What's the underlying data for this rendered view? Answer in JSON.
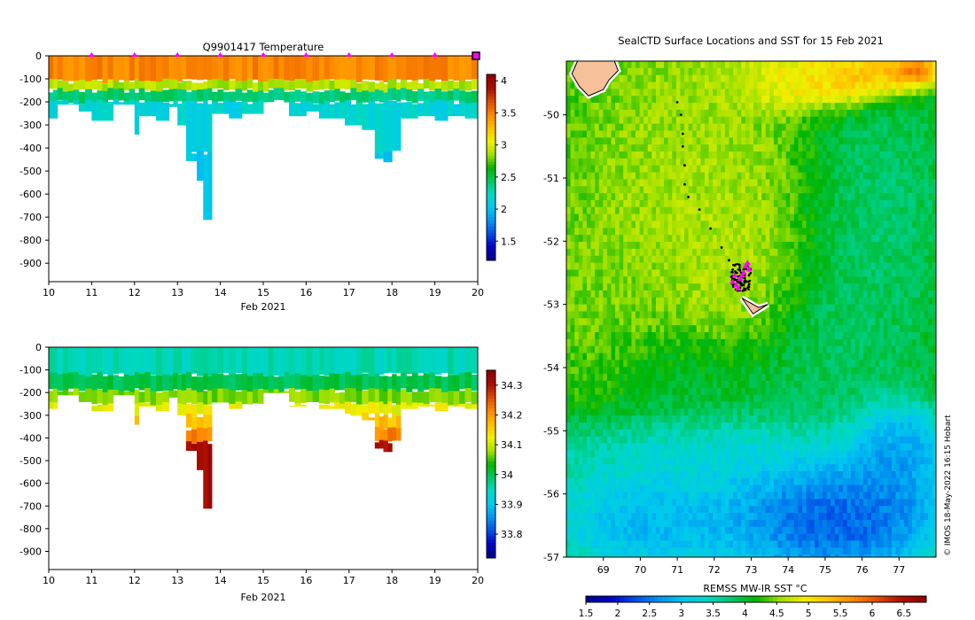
{
  "colors": {
    "sea_ramp": [
      "#00008b",
      "#0000cd",
      "#0050e6",
      "#0096f0",
      "#00c8f0",
      "#00d8c0",
      "#00c864",
      "#00b400",
      "#a0e000",
      "#f0f000",
      "#ffc000",
      "#ff8c00",
      "#e05000",
      "#b01000",
      "#900000"
    ],
    "land": "#f5c09a",
    "track": "#000000",
    "marker": "#ff00ff"
  },
  "chart_data": [
    {
      "type": "heatmap",
      "title": "Q9901417  Temperature",
      "xlabel": "Feb 2021",
      "xlim": [
        10,
        20
      ],
      "ylim": [
        -980,
        0
      ],
      "xticks": [
        10,
        11,
        12,
        13,
        14,
        15,
        16,
        17,
        18,
        19,
        20
      ],
      "yticks": [
        0,
        -100,
        -200,
        -300,
        -400,
        -500,
        -600,
        -700,
        -800,
        -900
      ],
      "colorbar": {
        "min": 1.2,
        "max": 4.1,
        "ticks": [
          1.5,
          2,
          2.5,
          3,
          3.5,
          4
        ]
      },
      "profile_markers": [
        11,
        12,
        13,
        14,
        15,
        16,
        17,
        18,
        19,
        20
      ],
      "profiles": [
        {
          "start": 10.0,
          "end": 10.2,
          "depth": 270
        },
        {
          "start": 10.2,
          "end": 10.7,
          "depth": 210
        },
        {
          "start": 10.7,
          "end": 11.0,
          "depth": 240
        },
        {
          "start": 11.0,
          "end": 11.5,
          "depth": 280
        },
        {
          "start": 11.5,
          "end": 12.0,
          "depth": 210
        },
        {
          "start": 12.0,
          "end": 12.1,
          "depth": 340
        },
        {
          "start": 12.1,
          "end": 12.5,
          "depth": 260
        },
        {
          "start": 12.5,
          "end": 12.8,
          "depth": 280
        },
        {
          "start": 12.8,
          "end": 13.0,
          "depth": 220
        },
        {
          "start": 13.0,
          "end": 13.2,
          "depth": 300
        },
        {
          "start": 13.2,
          "end": 13.45,
          "depth": 455
        },
        {
          "start": 13.45,
          "end": 13.6,
          "depth": 540
        },
        {
          "start": 13.6,
          "end": 13.8,
          "depth": 710
        },
        {
          "start": 13.8,
          "end": 14.2,
          "depth": 250
        },
        {
          "start": 14.2,
          "end": 14.5,
          "depth": 270
        },
        {
          "start": 14.5,
          "end": 15.0,
          "depth": 250
        },
        {
          "start": 15.0,
          "end": 15.6,
          "depth": 200
        },
        {
          "start": 15.6,
          "end": 16.0,
          "depth": 260
        },
        {
          "start": 16.0,
          "end": 16.3,
          "depth": 240
        },
        {
          "start": 16.3,
          "end": 16.9,
          "depth": 270
        },
        {
          "start": 16.9,
          "end": 17.3,
          "depth": 300
        },
        {
          "start": 17.3,
          "end": 17.6,
          "depth": 320
        },
        {
          "start": 17.6,
          "end": 17.8,
          "depth": 445
        },
        {
          "start": 17.8,
          "end": 18.0,
          "depth": 460
        },
        {
          "start": 18.0,
          "end": 18.2,
          "depth": 410
        },
        {
          "start": 18.2,
          "end": 18.6,
          "depth": 270
        },
        {
          "start": 18.6,
          "end": 19.0,
          "depth": 260
        },
        {
          "start": 19.0,
          "end": 19.3,
          "depth": 280
        },
        {
          "start": 19.3,
          "end": 19.7,
          "depth": 260
        },
        {
          "start": 19.7,
          "end": 20.0,
          "depth": 270
        }
      ],
      "layers": [
        {
          "from": 0,
          "to": 110,
          "value": 3.5
        },
        {
          "from": 110,
          "to": 150,
          "value": 2.9
        },
        {
          "from": 150,
          "to": 200,
          "value": 2.4
        },
        {
          "from": 200,
          "to": 420,
          "value": 2.15
        },
        {
          "from": 420,
          "to": 980,
          "value": 2.05
        }
      ]
    },
    {
      "type": "heatmap",
      "title": "",
      "xlabel": "Feb 2021",
      "xlim": [
        10,
        20
      ],
      "ylim": [
        -980,
        0
      ],
      "xticks": [
        10,
        11,
        12,
        13,
        14,
        15,
        16,
        17,
        18,
        19,
        20
      ],
      "yticks": [
        0,
        -100,
        -200,
        -300,
        -400,
        -500,
        -600,
        -700,
        -800,
        -900
      ],
      "colorbar": {
        "min": 33.72,
        "max": 34.35,
        "ticks": [
          33.8,
          33.9,
          34,
          34.1,
          34.2,
          34.3
        ]
      },
      "profiles_ref": 0,
      "layers": [
        {
          "from": 0,
          "to": 120,
          "value": 33.95
        },
        {
          "from": 120,
          "to": 190,
          "value": 34.0
        },
        {
          "from": 190,
          "to": 250,
          "value": 34.07
        },
        {
          "from": 250,
          "to": 300,
          "value": 34.12
        },
        {
          "from": 300,
          "to": 360,
          "value": 34.17
        },
        {
          "from": 360,
          "to": 420,
          "value": 34.22
        },
        {
          "from": 420,
          "to": 980,
          "value": 34.32
        }
      ]
    },
    {
      "type": "heatmap",
      "title": "SealCTD Surface Locations and SST for 15 Feb 2021",
      "xlabel": "REMSS MW-IR SST °C",
      "xlim": [
        68,
        78
      ],
      "ylim": [
        -57,
        -49.15
      ],
      "xticks": [
        69,
        70,
        71,
        72,
        73,
        74,
        75,
        76,
        77
      ],
      "yticks": [
        -50,
        -51,
        -52,
        -53,
        -54,
        -55,
        -56,
        -57
      ],
      "colorbar": {
        "min": 1.5,
        "max": 6.85,
        "ticks": [
          1.5,
          2,
          2.5,
          3,
          3.5,
          4,
          4.5,
          5,
          5.5,
          6,
          6.5
        ]
      },
      "credit": "© IMOS 18-May-2022 16:15 Hobart",
      "track": [
        [
          71.0,
          -49.8
        ],
        [
          71.1,
          -50.0
        ],
        [
          71.15,
          -50.3
        ],
        [
          71.15,
          -50.5
        ],
        [
          71.2,
          -50.8
        ],
        [
          71.2,
          -51.1
        ],
        [
          71.3,
          -51.3
        ],
        [
          71.6,
          -51.5
        ],
        [
          71.9,
          -51.8
        ],
        [
          72.2,
          -52.1
        ],
        [
          72.4,
          -52.3
        ],
        [
          72.5,
          -52.45
        ],
        [
          72.6,
          -52.5
        ],
        [
          72.55,
          -52.6
        ],
        [
          72.7,
          -52.55
        ],
        [
          72.8,
          -52.45
        ],
        [
          72.65,
          -52.65
        ],
        [
          72.9,
          -52.4
        ],
        [
          72.5,
          -52.55
        ],
        [
          72.75,
          -52.7
        ]
      ],
      "markers": [
        [
          72.6,
          -52.7
        ],
        [
          72.8,
          -52.5
        ],
        [
          72.9,
          -52.35
        ],
        [
          72.55,
          -52.55
        ],
        [
          72.7,
          -52.6
        ],
        [
          72.65,
          -52.75
        ],
        [
          72.95,
          -52.45
        ],
        [
          72.5,
          -52.65
        ],
        [
          72.85,
          -52.4
        ],
        [
          72.75,
          -52.55
        ]
      ],
      "land": [
        [
          [
            68.3,
            -49.15
          ],
          [
            68.7,
            -49.15
          ],
          [
            69.3,
            -49.15
          ],
          [
            69.4,
            -49.3
          ],
          [
            69.15,
            -49.45
          ],
          [
            69.0,
            -49.6
          ],
          [
            68.6,
            -49.7
          ],
          [
            68.35,
            -49.55
          ],
          [
            68.15,
            -49.35
          ]
        ],
        [
          [
            72.75,
            -52.9
          ],
          [
            73.2,
            -53.05
          ],
          [
            73.45,
            -53.0
          ],
          [
            73.05,
            -53.15
          ]
        ]
      ],
      "regions": [
        {
          "kind": "base",
          "value": 4.3
        },
        {
          "kind": "blob",
          "cx": 71.3,
          "cy": -51.2,
          "rx": 2.8,
          "ry": 2.0,
          "value": 4.7
        },
        {
          "kind": "blob",
          "cx": 69.2,
          "cy": -53.2,
          "rx": 2.0,
          "ry": 1.6,
          "value": 4.5
        },
        {
          "kind": "blob",
          "cx": 72.6,
          "cy": -52.7,
          "rx": 1.7,
          "ry": 1.4,
          "value": 4.75
        },
        {
          "kind": "blob",
          "cx": 76.5,
          "cy": -51.5,
          "rx": 2.0,
          "ry": 2.4,
          "value": 3.6
        },
        {
          "kind": "blob",
          "cx": 75.2,
          "cy": -53.8,
          "rx": 2.6,
          "ry": 1.6,
          "value": 3.7
        },
        {
          "kind": "blob",
          "cx": 71.5,
          "cy": -54.1,
          "rx": 3.2,
          "ry": 0.9,
          "value": 3.85
        },
        {
          "kind": "blob",
          "cx": 71.5,
          "cy": -55.3,
          "rx": 4.8,
          "ry": 0.75,
          "value": 3.0
        },
        {
          "kind": "blob",
          "cx": 70.2,
          "cy": -56.4,
          "rx": 3.0,
          "ry": 0.9,
          "value": 2.5
        },
        {
          "kind": "blob",
          "cx": 75.2,
          "cy": -56.3,
          "rx": 3.2,
          "ry": 1.1,
          "value": 1.7
        },
        {
          "kind": "blob",
          "cx": 76.8,
          "cy": -55.2,
          "rx": 1.4,
          "ry": 0.8,
          "value": 2.2
        },
        {
          "kind": "blob",
          "cx": 71.8,
          "cy": -49.4,
          "rx": 2.6,
          "ry": 0.6,
          "value": 4.6
        },
        {
          "kind": "blob",
          "cx": 74.4,
          "cy": -49.4,
          "rx": 2.2,
          "ry": 0.45,
          "value": 5.4
        },
        {
          "kind": "blob",
          "cx": 76.1,
          "cy": -49.35,
          "rx": 1.4,
          "ry": 0.4,
          "value": 5.9
        },
        {
          "kind": "blob",
          "cx": 77.3,
          "cy": -49.25,
          "rx": 0.7,
          "ry": 0.25,
          "value": 6.6
        }
      ]
    }
  ]
}
